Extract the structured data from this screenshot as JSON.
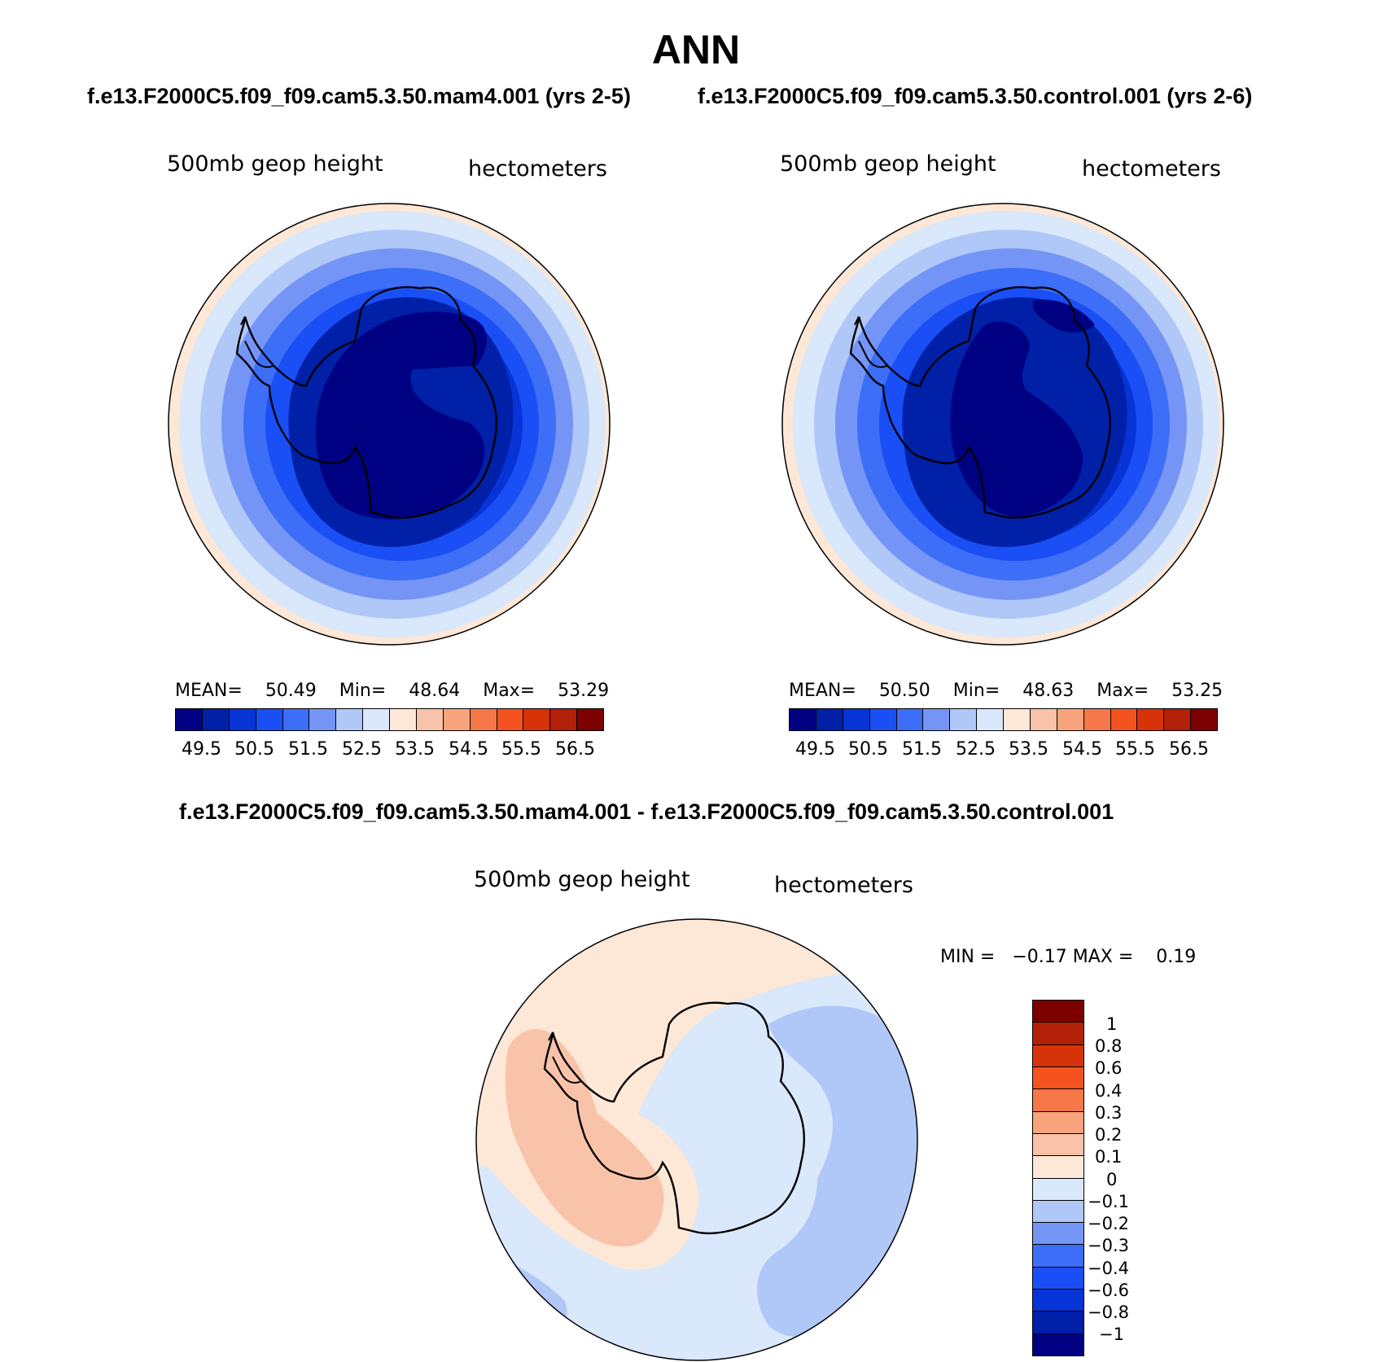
{
  "header": {
    "title": "ANN",
    "case_test": "f.e13.F2000C5.f09_f09.cam5.3.50.mam4.001 (yrs 2-5)",
    "case_control": "f.e13.F2000C5.f09_f09.cam5.3.50.control.001 (yrs 2-6)",
    "diff_title": "f.e13.F2000C5.f09_f09.cam5.3.50.mam4.001 - f.e13.F2000C5.f09_f09.cam5.3.50.control.001"
  },
  "colors": {
    "levels": [
      "#000083",
      "#0020a8",
      "#0734d6",
      "#1a4ff5",
      "#3c6ef7",
      "#7595f6",
      "#b0c8f8",
      "#d9e8fb",
      "#fde7d6",
      "#f8c3a8",
      "#f7a37c",
      "#f67748",
      "#f4521e",
      "#d73309",
      "#b12007",
      "#7d0000"
    ],
    "diff_levels": [
      "#000083",
      "#0020a8",
      "#0734d6",
      "#1a4ff5",
      "#3c6ef7",
      "#7595f6",
      "#b0c8f8",
      "#d9e8fb",
      "#fde7d6",
      "#f8c3a8",
      "#f7a37c",
      "#f67748",
      "#f4521e",
      "#d73309",
      "#b12007",
      "#7d0000"
    ]
  },
  "chart_data": [
    {
      "type": "heatmap",
      "projection": "south polar stereographic",
      "title": "500mb geop height",
      "units": "hectometers",
      "stats": {
        "mean_label": "MEAN=",
        "mean": "50.49",
        "min_label": "Min=",
        "min": "48.64",
        "max_label": "Max=",
        "max": "53.29"
      },
      "contour_levels": [
        49.5,
        50.0,
        50.5,
        51.0,
        51.5,
        52.0,
        52.5,
        53.0,
        53.5,
        54.0,
        54.5,
        55.0,
        55.5,
        56.0,
        56.5
      ],
      "colorbar_labels": [
        "49.5",
        "50.5",
        "51.5",
        "52.5",
        "53.5",
        "54.5",
        "55.5",
        "56.5"
      ]
    },
    {
      "type": "heatmap",
      "projection": "south polar stereographic",
      "title": "500mb geop height",
      "units": "hectometers",
      "stats": {
        "mean_label": "MEAN=",
        "mean": "50.50",
        "min_label": "Min=",
        "min": "48.63",
        "max_label": "Max=",
        "max": "53.25"
      },
      "contour_levels": [
        49.5,
        50.0,
        50.5,
        51.0,
        51.5,
        52.0,
        52.5,
        53.0,
        53.5,
        54.0,
        54.5,
        55.0,
        55.5,
        56.0,
        56.5
      ],
      "colorbar_labels": [
        "49.5",
        "50.5",
        "51.5",
        "52.5",
        "53.5",
        "54.5",
        "55.5",
        "56.5"
      ]
    },
    {
      "type": "heatmap",
      "projection": "south polar stereographic",
      "title": "500mb geop height",
      "units": "hectometers",
      "stats": {
        "min_label": "MIN =",
        "min": "−0.17",
        "max_label": "MAX =",
        "max": "0.19"
      },
      "contour_levels": [
        -1,
        -0.8,
        -0.6,
        -0.4,
        -0.3,
        -0.2,
        -0.1,
        0,
        0.1,
        0.2,
        0.3,
        0.4,
        0.6,
        0.8,
        1
      ],
      "colorbar_labels": [
        "1",
        "0.8",
        "0.6",
        "0.4",
        "0.3",
        "0.2",
        "0.1",
        "0",
        "−0.1",
        "−0.2",
        "−0.3",
        "−0.4",
        "−0.6",
        "−0.8",
        "−1"
      ]
    }
  ]
}
